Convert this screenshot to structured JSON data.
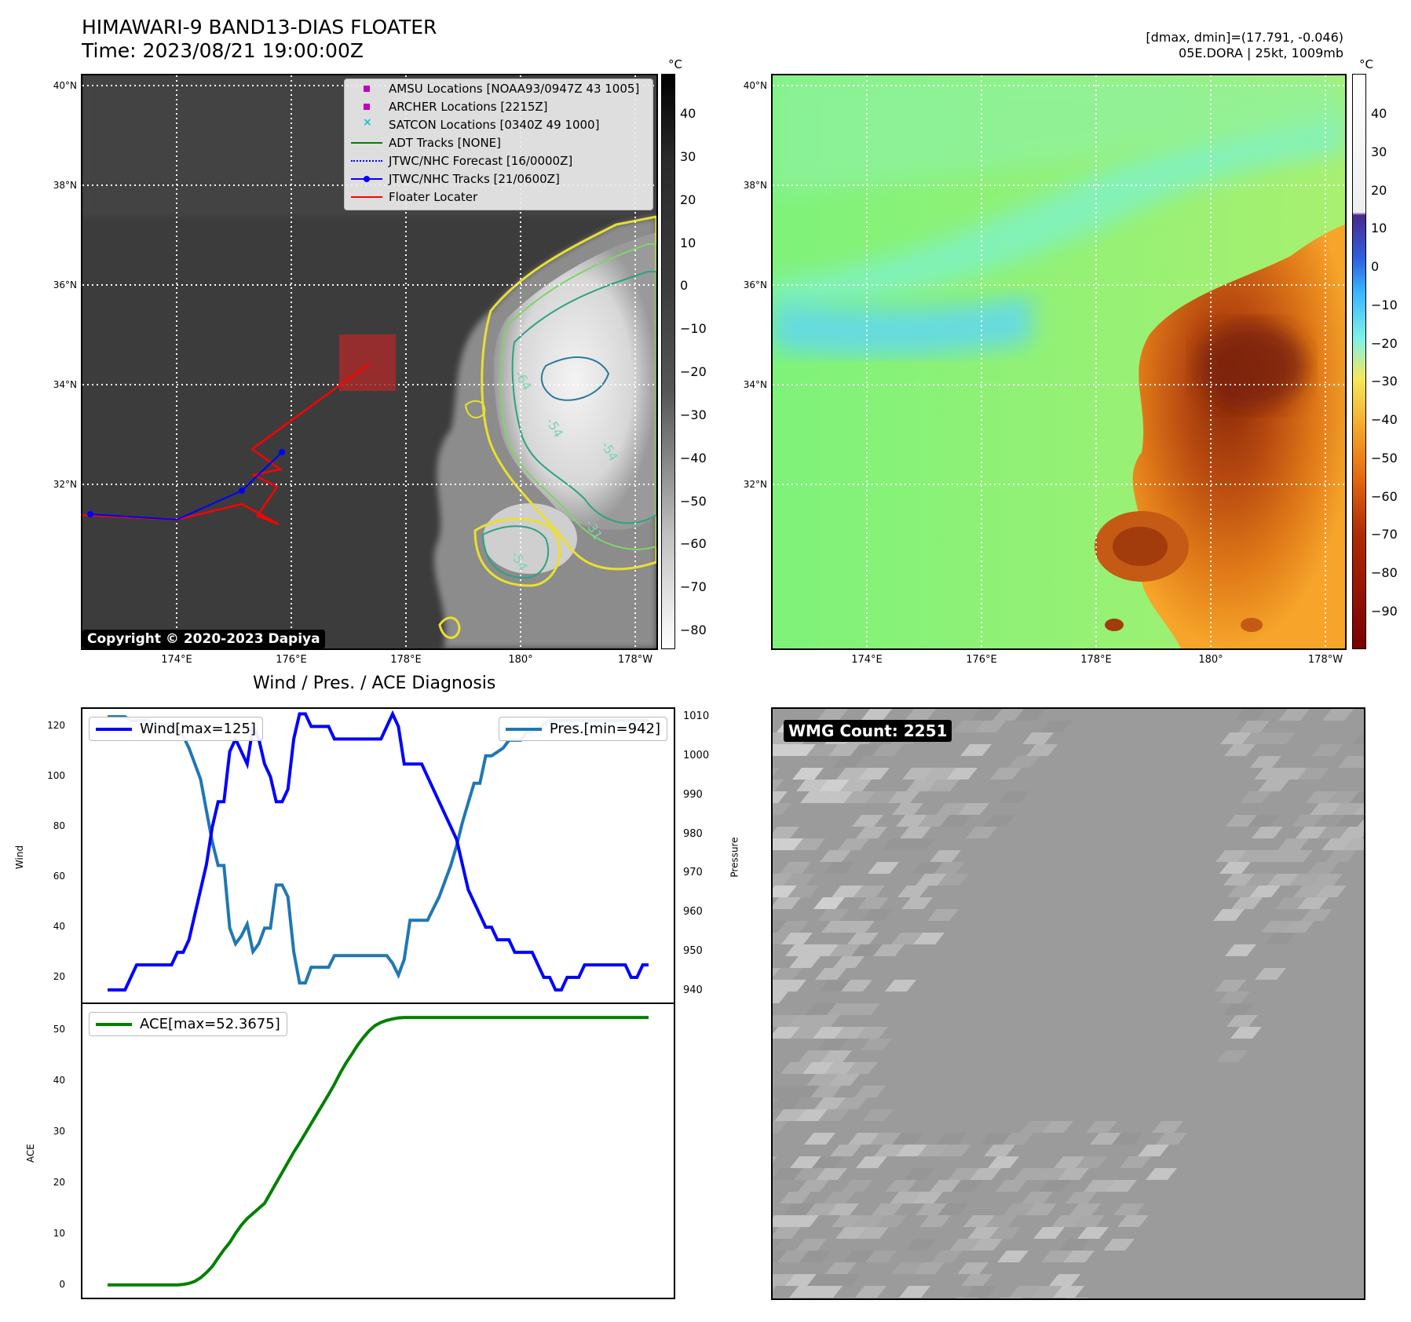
{
  "header": {
    "title": "HIMAWARI-9 BAND13-DIAS FLOATER",
    "time": "Time: 2023/08/21 19:00:00Z",
    "info_line1": "[dmax, dmin]=(17.791, -0.046)",
    "info_line2": "05E.DORA | 25kt, 1009mb"
  },
  "map": {
    "lat_labels": [
      "40°N",
      "38°N",
      "36°N",
      "34°N",
      "32°N"
    ],
    "lon_labels": [
      "174°E",
      "176°E",
      "178°E",
      "180°",
      "178°W"
    ],
    "colorbar_unit": "°C",
    "ir_colorbar_ticks": [
      "40",
      "30",
      "20",
      "10",
      "0",
      "−10",
      "−20",
      "−30",
      "−40",
      "−50",
      "−60",
      "−70",
      "−80"
    ],
    "color_colorbar_ticks": [
      "40",
      "30",
      "20",
      "10",
      "0",
      "−10",
      "−20",
      "−30",
      "−40",
      "−50",
      "−60",
      "−70",
      "−80",
      "−90"
    ],
    "contour_labels": [
      "-64",
      "-54",
      "-54",
      "-31",
      "-54"
    ],
    "legend": [
      {
        "label": "AMSU Locations [NOAA93/0947Z 43 1005]",
        "symbol": "square",
        "color": "#bf00bf"
      },
      {
        "label": "ARCHER Locations [2215Z]",
        "symbol": "square",
        "color": "#bf00bf"
      },
      {
        "label": "SATCON Locations [0340Z 49 1000]",
        "symbol": "x",
        "color": "#17becf"
      },
      {
        "label": "ADT Tracks [NONE]",
        "symbol": "line",
        "color": "#008000"
      },
      {
        "label": "JTWC/NHC Forecast [16/0000Z]",
        "symbol": "dotted",
        "color": "#0000ff"
      },
      {
        "label": "JTWC/NHC Tracks [21/0600Z]",
        "symbol": "line-dot",
        "color": "#0000ff"
      },
      {
        "label": "Floater Locater",
        "symbol": "line",
        "color": "#ff0000"
      }
    ],
    "copyright": "Copyright © 2020-2023 Dapiya"
  },
  "diagnosis": {
    "title": "Wind / Pres. / ACE Diagnosis",
    "wind_ylabel": "Wind",
    "pressure_ylabel": "Pressure",
    "ace_ylabel": "ACE",
    "wind_ticks": [
      "120",
      "100",
      "80",
      "60",
      "40",
      "20"
    ],
    "pressure_ticks": [
      "1010",
      "1000",
      "990",
      "980",
      "970",
      "960",
      "950",
      "940"
    ],
    "ace_ticks": [
      "50",
      "40",
      "30",
      "20",
      "10",
      "0"
    ],
    "wind_legend": "Wind[max=125]",
    "pressure_legend": "Pres.[min=942]",
    "ace_legend": "ACE[max=52.3675]"
  },
  "wmg": {
    "label": "WMG Count: 2251"
  },
  "chart_data": [
    {
      "type": "line",
      "title": "Wind / Pres. / ACE Diagnosis",
      "ylabel": "Wind",
      "ylim": [
        10,
        127
      ],
      "series": [
        {
          "name": "Wind[max=125]",
          "color": "#0000ff",
          "values": [
            15,
            15,
            15,
            15,
            20,
            25,
            25,
            25,
            25,
            25,
            25,
            25,
            30,
            30,
            35,
            45,
            55,
            65,
            80,
            90,
            90,
            110,
            115,
            110,
            105,
            120,
            115,
            105,
            100,
            90,
            90,
            95,
            115,
            125,
            125,
            120,
            120,
            120,
            120,
            115,
            115,
            115,
            115,
            115,
            115,
            115,
            115,
            115,
            120,
            125,
            120,
            105,
            105,
            105,
            105,
            100,
            95,
            90,
            85,
            80,
            75,
            65,
            55,
            50,
            45,
            40,
            40,
            35,
            35,
            35,
            30,
            30,
            30,
            30,
            25,
            20,
            20,
            15,
            15,
            20,
            20,
            20,
            25,
            25,
            25,
            25,
            25,
            25,
            25,
            25,
            20,
            20,
            25,
            25
          ]
        }
      ]
    },
    {
      "type": "line",
      "ylabel": "Pressure",
      "ylim": [
        937,
        1012
      ],
      "series": [
        {
          "name": "Pres.[min=942]",
          "color": "#1f77b4",
          "values": [
            1010,
            1010,
            1010,
            1010,
            1009,
            1009,
            1009,
            1009,
            1008,
            1008,
            1008,
            1008,
            1007,
            1005,
            1002,
            998,
            994,
            986,
            978,
            972,
            972,
            956,
            952,
            954,
            957,
            950,
            952,
            956,
            956,
            967,
            967,
            964,
            950,
            942,
            942,
            946,
            946,
            946,
            946,
            949,
            949,
            949,
            949,
            949,
            949,
            949,
            949,
            949,
            949,
            947,
            944,
            948,
            958,
            958,
            958,
            958,
            961,
            964,
            968,
            972,
            977,
            983,
            988,
            993,
            993,
            1000,
            1000,
            1001,
            1002,
            1004,
            1004,
            1004,
            1006,
            1006,
            1007,
            1008,
            1009,
            1009,
            1009,
            1009,
            1009,
            1009,
            1009,
            1009,
            1009,
            1009,
            1009,
            1009,
            1009,
            1009,
            1009,
            1009,
            1009,
            1009
          ]
        }
      ]
    },
    {
      "type": "line",
      "ylabel": "ACE",
      "ylim": [
        -2.5,
        55
      ],
      "series": [
        {
          "name": "ACE[max=52.3675]",
          "color": "#008000",
          "values": [
            0,
            0,
            0,
            0,
            0,
            0,
            0,
            0,
            0,
            0,
            0,
            0,
            0,
            0.1,
            0.3,
            0.7,
            1.4,
            2.4,
            3.6,
            5.3,
            6.9,
            8.3,
            10.1,
            11.7,
            13,
            14,
            15,
            16,
            18,
            20,
            22,
            24,
            26,
            27.8,
            29.7,
            31.6,
            33.5,
            35.4,
            37.3,
            39.3,
            41.5,
            43.5,
            45.2,
            47,
            48.5,
            49.8,
            50.8,
            51.4,
            51.8,
            52.1,
            52.3,
            52.3675,
            52.3675,
            52.3675,
            52.3675,
            52.3675,
            52.3675,
            52.3675,
            52.3675,
            52.3675,
            52.3675,
            52.3675,
            52.3675,
            52.3675,
            52.3675,
            52.3675,
            52.3675,
            52.3675,
            52.3675,
            52.3675,
            52.3675,
            52.3675,
            52.3675,
            52.3675,
            52.3675,
            52.3675,
            52.3675,
            52.3675,
            52.3675,
            52.3675,
            52.3675,
            52.3675,
            52.3675,
            52.3675,
            52.3675,
            52.3675,
            52.3675,
            52.3675,
            52.3675,
            52.3675,
            52.3675,
            52.3675,
            52.3675,
            52.3675
          ]
        }
      ]
    }
  ]
}
